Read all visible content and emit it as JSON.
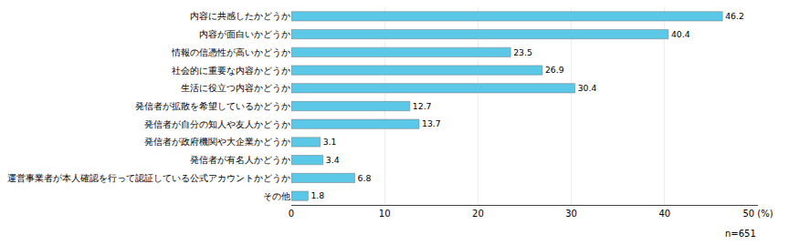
{
  "chart_data": {
    "type": "bar",
    "orientation": "horizontal",
    "categories": [
      "内容に共感したかどうか",
      "内容が面白いかどうか",
      "情報の信憑性が高いかどうか",
      "社会的に重要な内容かどうか",
      "生活に役立つ内容かどうか",
      "発信者が拡散を希望しているかどうか",
      "発信者が自分の知人や友人かどうか",
      "発信者が政府機関や大企業かどうか",
      "発信者が有名人かどうか",
      "運営事業者が本人確認を行って認証している公式アカウントかどうか",
      "その他"
    ],
    "values": [
      46.2,
      40.4,
      23.5,
      26.9,
      30.4,
      12.7,
      13.7,
      3.1,
      3.4,
      6.8,
      1.8
    ],
    "color": "#5BC8E8",
    "xlim": [
      0,
      50
    ],
    "xticks": [
      0,
      10,
      20,
      30,
      40,
      {
        "value": 50,
        "label": "50 (%)"
      }
    ],
    "grid": true,
    "data_labels": true,
    "annotations": [
      "n=651"
    ]
  }
}
